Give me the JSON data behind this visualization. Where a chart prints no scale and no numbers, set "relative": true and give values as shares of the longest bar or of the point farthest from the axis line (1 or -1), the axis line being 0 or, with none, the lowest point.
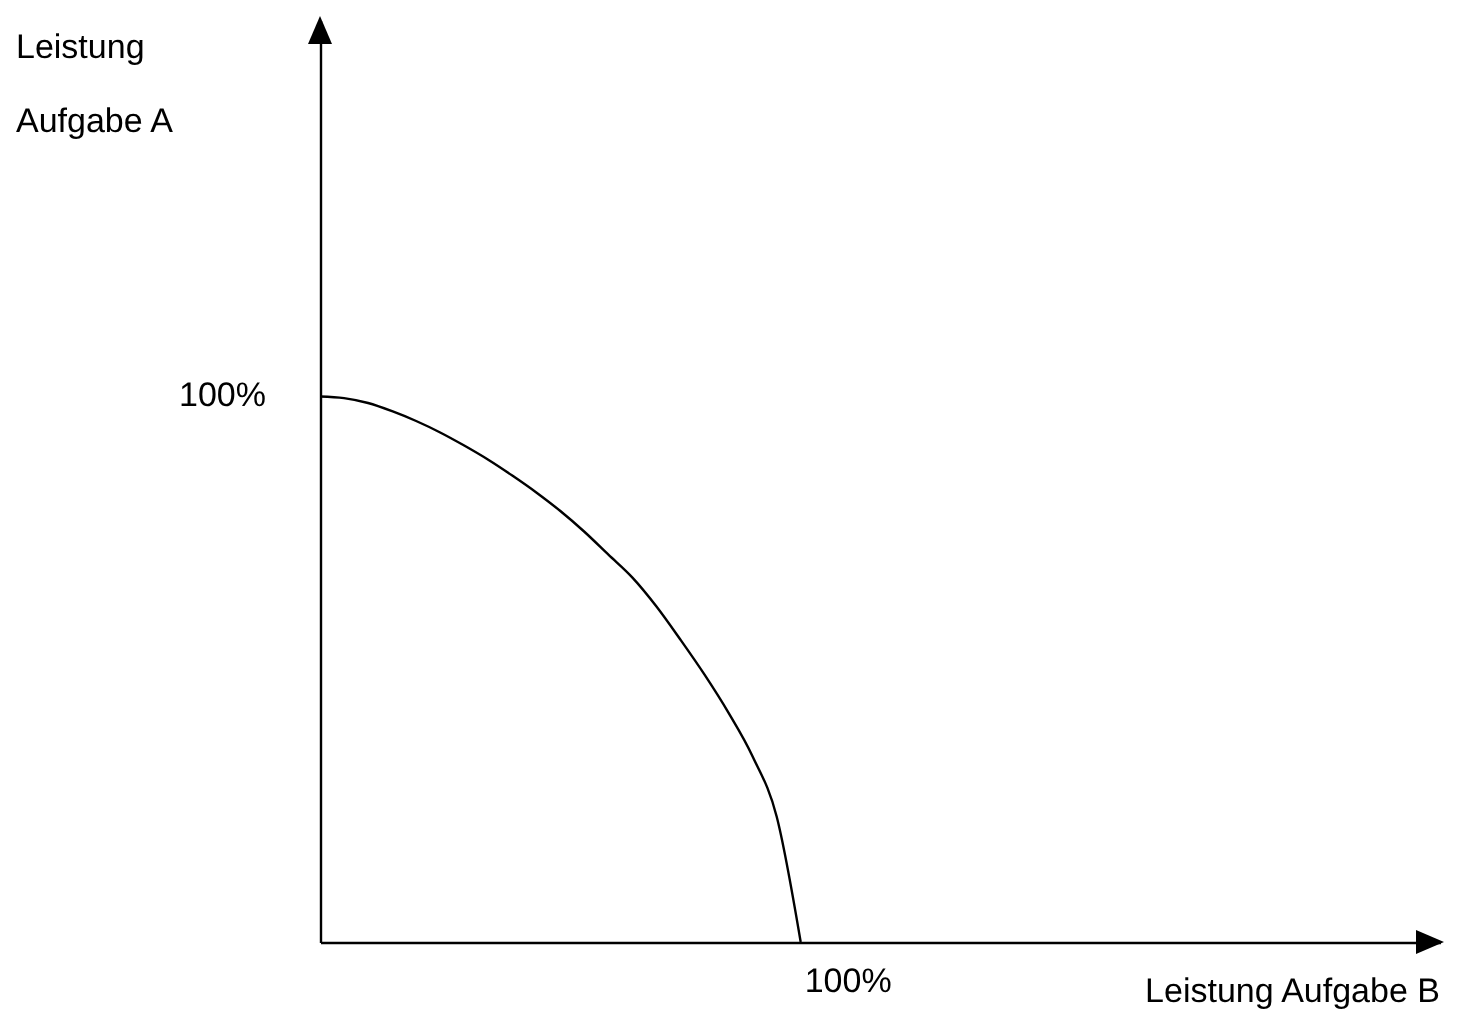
{
  "chart_data": {
    "type": "line",
    "relative": true,
    "categories": [
      null,
      null,
      null,
      null,
      null,
      null,
      null,
      null,
      null,
      null,
      null,
      null,
      null,
      null,
      null,
      null,
      null,
      null,
      null,
      null,
      null
    ],
    "series": [
      {
        "color": "#000000",
        "values": [
          1,
          0.997,
          0.988,
          0.973,
          0.955,
          0.934,
          0.91,
          0.884,
          0.855,
          0.824,
          0.79,
          0.752,
          0.71,
          0.668,
          0.615,
          0.554,
          0.49,
          0.42,
          0.34,
          0.23,
          0
        ]
      }
    ],
    "annotations": [
      "Leistung Aufgabe A",
      "100%",
      "100%",
      "Leistung Aufgabe B"
    ],
    "grid": false,
    "marker": "none",
    "line_style": "solid"
  }
}
